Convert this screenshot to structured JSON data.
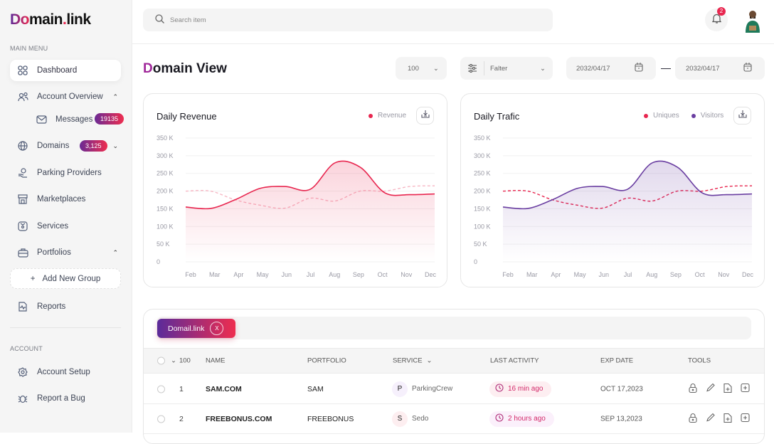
{
  "brand": {
    "logo_first": "Do",
    "logo_rest": "main",
    "logo_dot": ".",
    "logo_tail": "link"
  },
  "sidebar": {
    "main_menu_label": "MAIN MENU",
    "items": [
      {
        "label": "Dashboard",
        "icon": "grid-icon"
      },
      {
        "label": "Account Overview",
        "icon": "users-icon"
      },
      {
        "label": "Messages",
        "icon": "mail-icon",
        "badge": "19135"
      },
      {
        "label": "Domains",
        "icon": "globe-icon",
        "badge": "3,125"
      },
      {
        "label": "Parking Providers",
        "icon": "hand-coin-icon"
      },
      {
        "label": "Marketplaces",
        "icon": "store-icon"
      },
      {
        "label": "Services",
        "icon": "box-icon"
      },
      {
        "label": "Portfolios",
        "icon": "briefcase-icon"
      },
      {
        "label": "Reports",
        "icon": "report-icon"
      }
    ],
    "add_group": "Add New Group",
    "account_label": "ACCOUNT",
    "account_items": [
      {
        "label": "Account Setup",
        "icon": "gear-icon"
      },
      {
        "label": "Report a Bug",
        "icon": "bug-icon"
      }
    ]
  },
  "header": {
    "search_placeholder": "Search item",
    "notifications": "2"
  },
  "page": {
    "title_first": "D",
    "title_rest": "omain View",
    "per_page": "100",
    "filter": "Falter",
    "date_from": "2032/04/17",
    "date_sep": "—",
    "date_to": "2032/04/17"
  },
  "colors": {
    "accent": "#e8264f",
    "purple": "#6a3ea1"
  },
  "chart_data": [
    {
      "type": "area",
      "title": "Daily Revenue",
      "categories": [
        "Feb",
        "Mar",
        "Apr",
        "May",
        "Jun",
        "Jul",
        "Aug",
        "Sep",
        "Oct",
        "Nov",
        "Dec"
      ],
      "yticks": [
        "350 K",
        "300 K",
        "250 K",
        "200 K",
        "150 K",
        "100 K",
        "50 K",
        "0"
      ],
      "ylim": [
        0,
        350
      ],
      "series": [
        {
          "name": "Revenue",
          "color": "#e8264f",
          "style": "solid",
          "values": [
            155,
            151,
            176,
            208,
            213,
            205,
            280,
            268,
            195,
            190,
            192
          ]
        },
        {
          "color": "#f7b7c4",
          "style": "dashed",
          "values": [
            200,
            200,
            175,
            160,
            152,
            180,
            172,
            200,
            200,
            213,
            215
          ]
        }
      ]
    },
    {
      "type": "area",
      "title": "Daily Trafic",
      "categories": [
        "Feb",
        "Mar",
        "Apr",
        "May",
        "Jun",
        "Jul",
        "Aug",
        "Sep",
        "Oct",
        "Nov",
        "Dec"
      ],
      "yticks": [
        "350 K",
        "300 K",
        "250 K",
        "200 K",
        "150 K",
        "100 K",
        "50 K",
        "0"
      ],
      "ylim": [
        0,
        350
      ],
      "series": [
        {
          "name": "Visitors",
          "color": "#6a3ea1",
          "style": "solid",
          "values": [
            155,
            151,
            176,
            208,
            213,
            205,
            280,
            268,
            195,
            190,
            192
          ]
        },
        {
          "name": "Uniques",
          "color": "#e8264f",
          "style": "dashed",
          "values": [
            200,
            200,
            175,
            160,
            152,
            180,
            172,
            200,
            200,
            213,
            215
          ]
        }
      ]
    }
  ],
  "table": {
    "chip": "Domail.link",
    "chip_close": "X",
    "count": "100",
    "headers": {
      "name": "NAME",
      "portfolio": "PORTFOLIO",
      "service": "SERVICE",
      "activity": "LAST ACTIVITY",
      "exp": "EXP DATE",
      "tools": "TOOLS"
    },
    "rows": [
      {
        "num": "1",
        "name": "SAM.COM",
        "portfolio": "SAM",
        "service_initial": "P",
        "service": "ParkingCrew",
        "activity": "16 min ago",
        "exp": "OCT 17,2023"
      },
      {
        "num": "2",
        "name": "FREEBONUS.COM",
        "portfolio": "FREEBONUS",
        "service_initial": "S",
        "service": "Sedo",
        "activity": "2 hours ago",
        "exp": "SEP 13,2023"
      }
    ]
  }
}
